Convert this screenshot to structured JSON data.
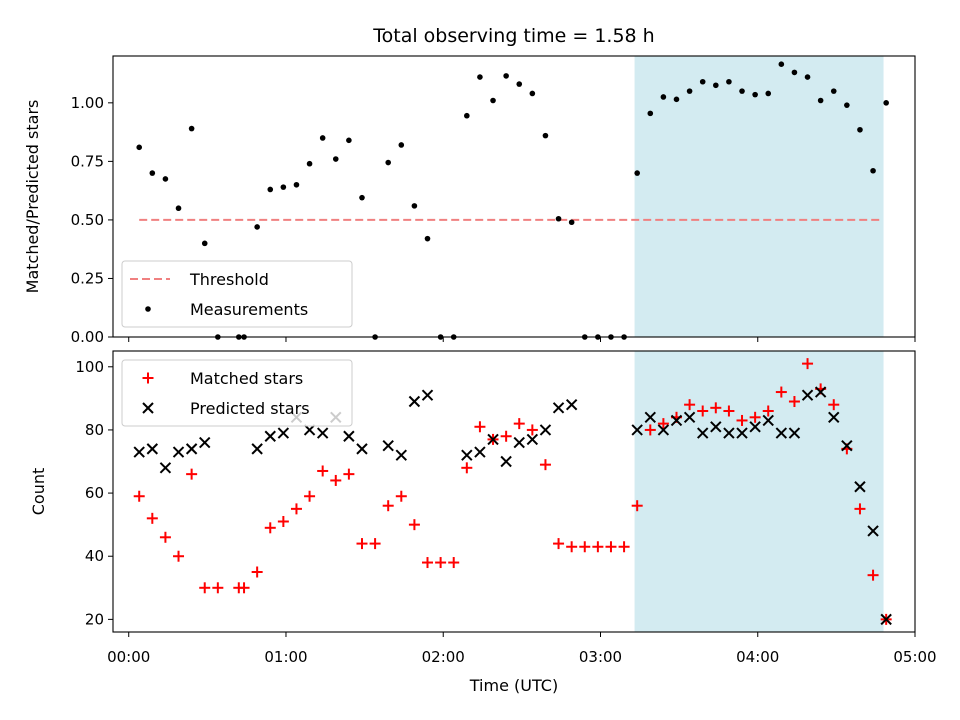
{
  "chart_data": [
    {
      "type": "scatter",
      "title": "Total observing time = 1.58 h",
      "ylabel": "Matched/Predicted stars",
      "xlim": [
        "23:54",
        "05:00"
      ],
      "ylim": [
        0,
        1.2
      ],
      "yticks": [
        "0.00",
        "0.25",
        "0.50",
        "0.75",
        "1.00"
      ],
      "shaded_region": {
        "x_start": "03:13",
        "x_end": "04:48",
        "color": "#d3ebf1"
      },
      "threshold": {
        "name": "Threshold",
        "value": 0.5,
        "x_start": "00:04",
        "x_end": "04:47",
        "color": "#f08080",
        "style": "dashed"
      },
      "series": [
        {
          "name": "Measurements",
          "color": "#000000",
          "marker": "dot",
          "points": [
            [
              "00:04",
              0.81
            ],
            [
              "00:09",
              0.7
            ],
            [
              "00:14",
              0.675
            ],
            [
              "00:19",
              0.55
            ],
            [
              "00:24",
              0.89
            ],
            [
              "00:29",
              0.4
            ],
            [
              "00:34",
              0.0
            ],
            [
              "00:42",
              0.0
            ],
            [
              "00:44",
              0.0
            ],
            [
              "00:49",
              0.47
            ],
            [
              "00:54",
              0.63
            ],
            [
              "00:59",
              0.64
            ],
            [
              "01:04",
              0.65
            ],
            [
              "01:09",
              0.74
            ],
            [
              "01:14",
              0.85
            ],
            [
              "01:19",
              0.76
            ],
            [
              "01:24",
              0.84
            ],
            [
              "01:29",
              0.595
            ],
            [
              "01:34",
              0.0
            ],
            [
              "01:39",
              0.745
            ],
            [
              "01:44",
              0.82
            ],
            [
              "01:49",
              0.56
            ],
            [
              "01:54",
              0.42
            ],
            [
              "01:59",
              0.0
            ],
            [
              "02:04",
              0.0
            ],
            [
              "02:09",
              0.945
            ],
            [
              "02:14",
              1.11
            ],
            [
              "02:19",
              1.01
            ],
            [
              "02:24",
              1.115
            ],
            [
              "02:29",
              1.08
            ],
            [
              "02:34",
              1.04
            ],
            [
              "02:39",
              0.86
            ],
            [
              "02:44",
              0.505
            ],
            [
              "02:49",
              0.49
            ],
            [
              "02:54",
              0.0
            ],
            [
              "02:59",
              0.0
            ],
            [
              "03:04",
              0.0
            ],
            [
              "03:09",
              0.0
            ],
            [
              "03:14",
              0.7
            ],
            [
              "03:19",
              0.955
            ],
            [
              "03:24",
              1.025
            ],
            [
              "03:29",
              1.015
            ],
            [
              "03:34",
              1.05
            ],
            [
              "03:39",
              1.09
            ],
            [
              "03:44",
              1.075
            ],
            [
              "03:49",
              1.09
            ],
            [
              "03:54",
              1.05
            ],
            [
              "03:59",
              1.035
            ],
            [
              "04:04",
              1.04
            ],
            [
              "04:09",
              1.165
            ],
            [
              "04:14",
              1.13
            ],
            [
              "04:19",
              1.11
            ],
            [
              "04:24",
              1.01
            ],
            [
              "04:29",
              1.05
            ],
            [
              "04:34",
              0.99
            ],
            [
              "04:39",
              0.885
            ],
            [
              "04:44",
              0.71
            ],
            [
              "04:49",
              1.0
            ]
          ]
        }
      ],
      "legend": {
        "position": "lower left"
      }
    },
    {
      "type": "scatter",
      "ylabel": "Count",
      "xlabel": "Time (UTC)",
      "xlim": [
        "23:54",
        "05:00"
      ],
      "ylim": [
        16,
        105
      ],
      "xticks": [
        "00:00",
        "01:00",
        "02:00",
        "03:00",
        "04:00",
        "05:00"
      ],
      "yticks": [
        "20",
        "40",
        "60",
        "80",
        "100"
      ],
      "shaded_region": {
        "x_start": "03:13",
        "x_end": "04:48",
        "color": "#d3ebf1"
      },
      "series": [
        {
          "name": "Matched stars",
          "color": "#ff0000",
          "marker": "plus",
          "points": [
            [
              "00:04",
              59
            ],
            [
              "00:09",
              52
            ],
            [
              "00:14",
              46
            ],
            [
              "00:19",
              40
            ],
            [
              "00:24",
              66
            ],
            [
              "00:29",
              30
            ],
            [
              "00:34",
              30
            ],
            [
              "00:42",
              30
            ],
            [
              "00:44",
              30
            ],
            [
              "00:49",
              35
            ],
            [
              "00:54",
              49
            ],
            [
              "00:59",
              51
            ],
            [
              "01:04",
              55
            ],
            [
              "01:09",
              59
            ],
            [
              "01:14",
              67
            ],
            [
              "01:19",
              64
            ],
            [
              "01:24",
              66
            ],
            [
              "01:29",
              44
            ],
            [
              "01:34",
              44
            ],
            [
              "01:39",
              56
            ],
            [
              "01:44",
              59
            ],
            [
              "01:49",
              50
            ],
            [
              "01:54",
              38
            ],
            [
              "01:59",
              38
            ],
            [
              "02:04",
              38
            ],
            [
              "02:09",
              68
            ],
            [
              "02:14",
              81
            ],
            [
              "02:19",
              77
            ],
            [
              "02:24",
              78
            ],
            [
              "02:29",
              82
            ],
            [
              "02:34",
              80
            ],
            [
              "02:39",
              69
            ],
            [
              "02:44",
              44
            ],
            [
              "02:49",
              43
            ],
            [
              "02:54",
              43
            ],
            [
              "02:59",
              43
            ],
            [
              "03:04",
              43
            ],
            [
              "03:09",
              43
            ],
            [
              "03:14",
              56
            ],
            [
              "03:19",
              80
            ],
            [
              "03:24",
              82
            ],
            [
              "03:29",
              84
            ],
            [
              "03:34",
              88
            ],
            [
              "03:39",
              86
            ],
            [
              "03:44",
              87
            ],
            [
              "03:49",
              86
            ],
            [
              "03:54",
              83
            ],
            [
              "03:59",
              84
            ],
            [
              "04:04",
              86
            ],
            [
              "04:09",
              92
            ],
            [
              "04:14",
              89
            ],
            [
              "04:19",
              101
            ],
            [
              "04:24",
              93
            ],
            [
              "04:29",
              88
            ],
            [
              "04:34",
              74
            ],
            [
              "04:39",
              55
            ],
            [
              "04:44",
              34
            ],
            [
              "04:49",
              20
            ]
          ]
        },
        {
          "name": "Predicted stars",
          "color": "#000000",
          "marker": "x",
          "points": [
            [
              "00:04",
              73
            ],
            [
              "00:09",
              74
            ],
            [
              "00:14",
              68
            ],
            [
              "00:19",
              73
            ],
            [
              "00:24",
              74
            ],
            [
              "00:29",
              76
            ],
            [
              "00:49",
              74
            ],
            [
              "00:54",
              78
            ],
            [
              "00:59",
              79
            ],
            [
              "01:04",
              84
            ],
            [
              "01:09",
              80
            ],
            [
              "01:14",
              79
            ],
            [
              "01:19",
              84
            ],
            [
              "01:24",
              78
            ],
            [
              "01:29",
              74
            ],
            [
              "01:39",
              75
            ],
            [
              "01:44",
              72
            ],
            [
              "01:49",
              89
            ],
            [
              "01:54",
              91
            ],
            [
              "02:09",
              72
            ],
            [
              "02:14",
              73
            ],
            [
              "02:19",
              77
            ],
            [
              "02:24",
              70
            ],
            [
              "02:29",
              76
            ],
            [
              "02:34",
              77
            ],
            [
              "02:39",
              80
            ],
            [
              "02:44",
              87
            ],
            [
              "02:49",
              88
            ],
            [
              "03:14",
              80
            ],
            [
              "03:19",
              84
            ],
            [
              "03:24",
              80
            ],
            [
              "03:29",
              83
            ],
            [
              "03:34",
              84
            ],
            [
              "03:39",
              79
            ],
            [
              "03:44",
              81
            ],
            [
              "03:49",
              79
            ],
            [
              "03:54",
              79
            ],
            [
              "03:59",
              81
            ],
            [
              "04:04",
              83
            ],
            [
              "04:09",
              79
            ],
            [
              "04:14",
              79
            ],
            [
              "04:19",
              91
            ],
            [
              "04:24",
              92
            ],
            [
              "04:29",
              84
            ],
            [
              "04:34",
              75
            ],
            [
              "04:39",
              62
            ],
            [
              "04:44",
              48
            ],
            [
              "04:49",
              20
            ]
          ]
        }
      ],
      "legend": {
        "position": "upper left"
      }
    }
  ]
}
